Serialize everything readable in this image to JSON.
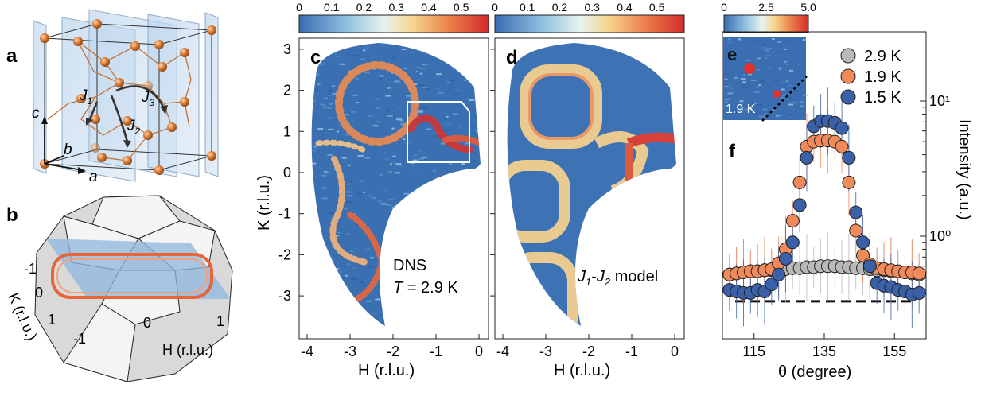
{
  "panels": {
    "a": {
      "letter": "a",
      "labels": {
        "j1": "J",
        "j1_sub": "1",
        "j2": "J",
        "j2_sub": "2",
        "j3": "J",
        "j3_sub": "3",
        "c": "c",
        "b": "b",
        "a": "a"
      }
    },
    "b": {
      "letter": "b",
      "k_axis": "K (r.l.u.)",
      "h_axis": "H (r.l.u.)",
      "ticks": [
        "-1",
        "0",
        "1",
        "-1",
        "0",
        "1"
      ]
    },
    "c": {
      "letter": "c",
      "caption_line1": "DNS",
      "caption_line2_prefix": "T",
      "caption_line2_value": " = 2.9 K"
    },
    "d": {
      "letter": "d",
      "caption_prefix": "J",
      "caption_sub1": "1",
      "caption_dash": "-",
      "caption_j2": "J",
      "caption_sub2": "2",
      "caption_suffix": " model"
    },
    "e": {
      "letter": "e",
      "temp": "1.9 K"
    },
    "f": {
      "letter": "f"
    }
  },
  "colorbars": {
    "cd": {
      "ticks": [
        "0",
        "0.1",
        "0.2",
        "0.3",
        "0.4",
        "0.5"
      ]
    },
    "e": {
      "ticks": [
        "0",
        "2.5",
        "5.0"
      ]
    }
  },
  "axes_cd": {
    "xlabel": "H (r.l.u.)",
    "ylabel": "K (r.l.u.)",
    "x_ticks": [
      "-4",
      "-3",
      "-2",
      "-1",
      "0"
    ],
    "y_ticks": [
      "3",
      "2",
      "1",
      "0",
      "-1",
      "-2",
      "-3"
    ]
  },
  "chart_data": {
    "type": "scatter",
    "xlabel": "θ (degree)",
    "ylabel": "Intensity (a.u.)",
    "x_ticks": [
      "115",
      "135",
      "155"
    ],
    "y_ticks": [
      "10¹",
      "10⁰"
    ],
    "yscale": "log",
    "legend_placement": "top-right",
    "series": [
      {
        "name": "2.9 K",
        "color": "#b9b9b9",
        "x": [
          108,
          110,
          112,
          114,
          116,
          118,
          120,
          122,
          124,
          126,
          128,
          130,
          132,
          134,
          136,
          138,
          140,
          142,
          144,
          146,
          148,
          150,
          152,
          154,
          156,
          158,
          160,
          162
        ],
        "y": [
          0.52,
          0.53,
          0.54,
          0.55,
          0.55,
          0.56,
          0.56,
          0.57,
          0.57,
          0.58,
          0.58,
          0.59,
          0.59,
          0.6,
          0.6,
          0.6,
          0.59,
          0.59,
          0.58,
          0.58,
          0.57,
          0.56,
          0.56,
          0.55,
          0.55,
          0.54,
          0.53,
          0.52
        ]
      },
      {
        "name": "1.9 K",
        "color": "#f08a5a",
        "x": [
          108,
          110,
          112,
          114,
          116,
          118,
          120,
          122,
          124,
          126,
          128,
          130,
          132,
          134,
          136,
          138,
          140,
          142,
          144,
          146,
          148,
          150,
          152,
          154,
          156,
          158,
          160,
          162
        ],
        "y": [
          0.52,
          0.53,
          0.54,
          0.55,
          0.55,
          0.56,
          0.57,
          0.63,
          0.8,
          1.3,
          2.5,
          4.6,
          5.0,
          5.1,
          5.1,
          5.0,
          4.6,
          2.5,
          1.1,
          0.72,
          0.62,
          0.58,
          0.57,
          0.56,
          0.55,
          0.54,
          0.54,
          0.53
        ]
      },
      {
        "name": "1.5 K",
        "color": "#3a60a8",
        "x": [
          108,
          110,
          112,
          114,
          116,
          118,
          120,
          122,
          124,
          126,
          128,
          130,
          132,
          134,
          136,
          138,
          140,
          142,
          144,
          146,
          148,
          150,
          152,
          154,
          156,
          158,
          160,
          162
        ],
        "y": [
          0.4,
          0.39,
          0.38,
          0.38,
          0.4,
          0.39,
          0.44,
          0.52,
          0.68,
          0.9,
          1.7,
          3.8,
          6.5,
          7.1,
          7.1,
          6.9,
          6.3,
          3.8,
          1.5,
          0.9,
          0.6,
          0.45,
          0.43,
          0.42,
          0.4,
          0.39,
          0.37,
          0.38
        ]
      }
    ],
    "baseline_dashed": 0.33
  }
}
